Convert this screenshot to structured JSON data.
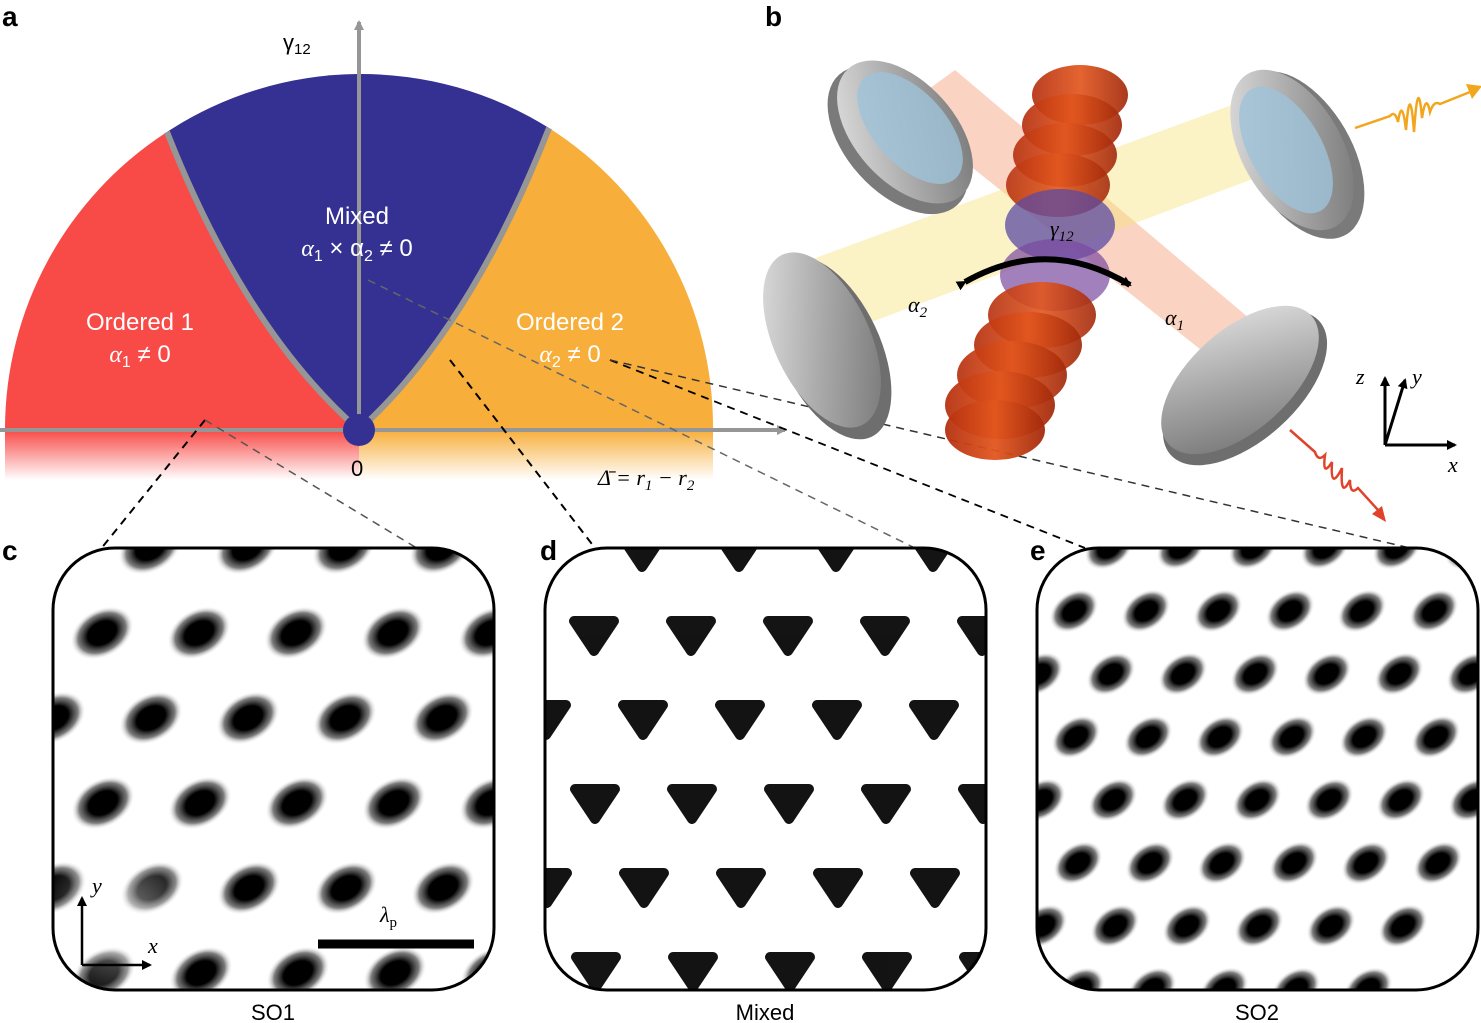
{
  "panels": {
    "a": "a",
    "b": "b",
    "c": "c",
    "d": "d",
    "e": "e"
  },
  "phase_diagram": {
    "y_axis_label": "γ",
    "y_axis_sub": "12",
    "origin_label": "0",
    "x_axis_label_lhs": "Δ̄ = r",
    "x_axis_r1_sub": "1",
    "x_axis_minus": " − r",
    "x_axis_r2_sub": "2",
    "regions": {
      "ordered1": {
        "title": "Ordered 1",
        "cond_a": "α",
        "cond_sub": "1",
        "cond_rest": " ≠ 0",
        "color": "#f84a47"
      },
      "mixed": {
        "title": "Mixed",
        "cond_a": "α",
        "cond_sub1": "1",
        "cond_mid": " × α",
        "cond_sub2": "2",
        "cond_rest": " ≠ 0",
        "color": "#343192"
      },
      "ordered2": {
        "title": "Ordered 2",
        "cond_a": "α",
        "cond_sub": "2",
        "cond_rest": " ≠ 0",
        "color": "#f7ae3a"
      }
    }
  },
  "setup": {
    "gamma_label": "γ",
    "gamma_sub": "12",
    "alpha1": "α",
    "alpha1_sub": "1",
    "alpha2": "α",
    "alpha2_sub": "2",
    "axis_z": "z",
    "axis_y": "y",
    "axis_x": "x",
    "pump_color": "#e0432a",
    "emission_color": "#f2a61e"
  },
  "patterns": [
    {
      "id": "c",
      "caption": "SO1",
      "scale_label": "λ",
      "scale_sub": "p",
      "axis_x": "x",
      "axis_y": "y"
    },
    {
      "id": "d",
      "caption": "Mixed"
    },
    {
      "id": "e",
      "caption": "SO2"
    }
  ],
  "colors": {
    "accent_gray": "#969696",
    "red": "#f84a47",
    "blue": "#343192",
    "orange": "#f7ae3a"
  }
}
